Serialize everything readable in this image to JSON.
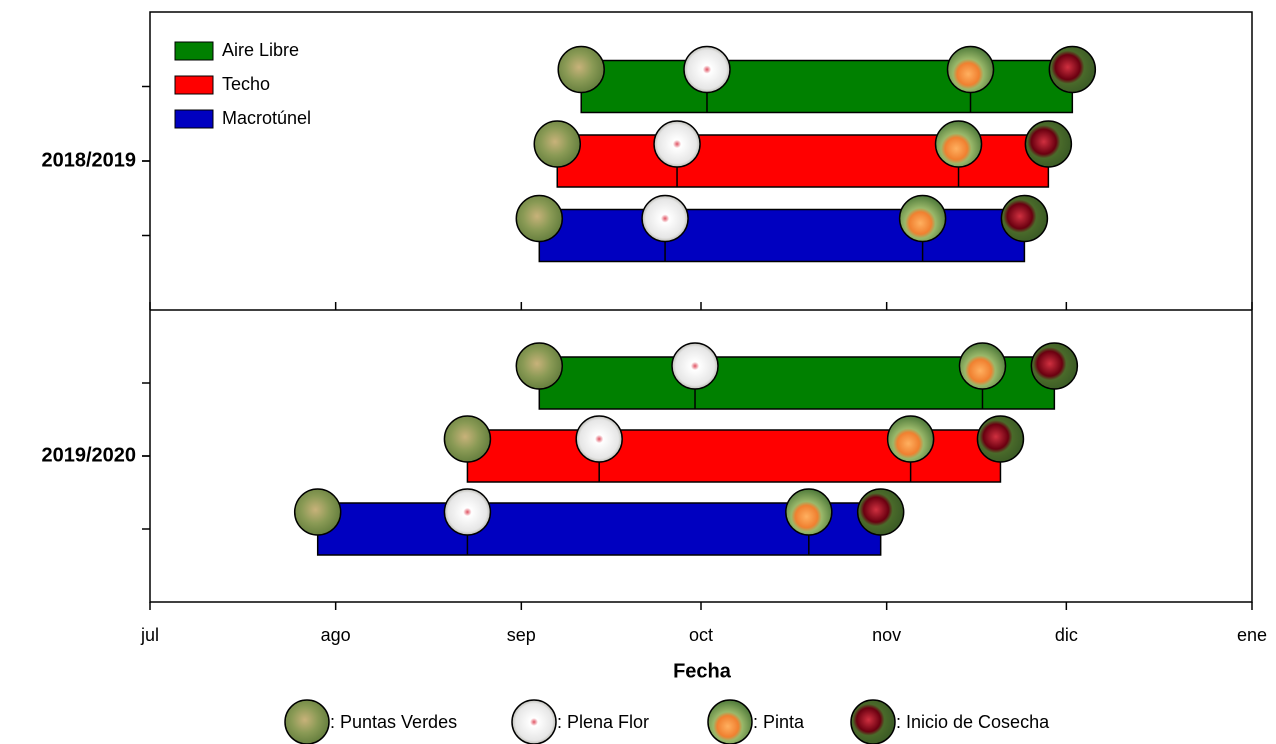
{
  "chart_data": {
    "type": "timeline",
    "xlabel": "Fecha",
    "xlim": [
      0,
      184
    ],
    "xticks": [
      {
        "value": 0,
        "label": "jul"
      },
      {
        "value": 31,
        "label": "ago"
      },
      {
        "value": 62,
        "label": "sep"
      },
      {
        "value": 92,
        "label": "oct"
      },
      {
        "value": 123,
        "label": "nov"
      },
      {
        "value": 153,
        "label": "dic"
      },
      {
        "value": 184,
        "label": "ene"
      }
    ],
    "stages": [
      ": Puntas Verdes",
      ": Plena Flor",
      ": Pinta",
      ": Inicio de Cosecha"
    ],
    "series": [
      {
        "name": "Aire Libre",
        "color": "#008000"
      },
      {
        "name": "Techo",
        "color": "#ff0000"
      },
      {
        "name": "Macrotúnel",
        "color": "#0000c0"
      }
    ],
    "groups": [
      {
        "name": "2018/2019",
        "values": [
          [
            72,
            93,
            137,
            154
          ],
          [
            68,
            88,
            135,
            150
          ],
          [
            65,
            86,
            129,
            146
          ]
        ]
      },
      {
        "name": "2019/2020",
        "values": [
          [
            65,
            91,
            139,
            151
          ],
          [
            53,
            75,
            127,
            142
          ],
          [
            28,
            53,
            110,
            122
          ]
        ]
      }
    ]
  }
}
